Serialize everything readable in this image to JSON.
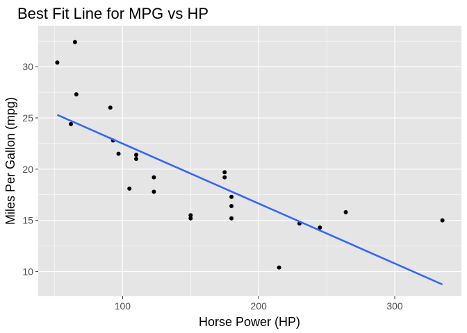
{
  "chart_data": {
    "type": "scatter",
    "title": "Best Fit Line for MPG vs HP",
    "xlabel": "Horse Power (HP)",
    "ylabel": "Miles Per Gallon (mpg)",
    "xlim": [
      38,
      349
    ],
    "ylim": [
      7.6,
      34.0
    ],
    "x_major_ticks": [
      100,
      200,
      300
    ],
    "x_minor_ticks": [
      50,
      150,
      250
    ],
    "y_major_ticks": [
      10,
      15,
      20,
      25,
      30
    ],
    "y_minor_ticks": [
      12.5,
      17.5,
      22.5,
      27.5,
      32.5
    ],
    "grid": true,
    "points": [
      {
        "x": 52,
        "y": 30.4
      },
      {
        "x": 62,
        "y": 24.4
      },
      {
        "x": 65,
        "y": 32.4
      },
      {
        "x": 66,
        "y": 27.3
      },
      {
        "x": 91,
        "y": 26.0
      },
      {
        "x": 93,
        "y": 22.8
      },
      {
        "x": 97,
        "y": 21.5
      },
      {
        "x": 105,
        "y": 18.1
      },
      {
        "x": 110,
        "y": 21.0
      },
      {
        "x": 110,
        "y": 21.4
      },
      {
        "x": 123,
        "y": 19.2
      },
      {
        "x": 123,
        "y": 17.8
      },
      {
        "x": 150,
        "y": 15.5
      },
      {
        "x": 150,
        "y": 15.2
      },
      {
        "x": 175,
        "y": 19.7
      },
      {
        "x": 175,
        "y": 19.2
      },
      {
        "x": 180,
        "y": 17.3
      },
      {
        "x": 180,
        "y": 16.4
      },
      {
        "x": 180,
        "y": 15.2
      },
      {
        "x": 215,
        "y": 10.4
      },
      {
        "x": 230,
        "y": 14.7
      },
      {
        "x": 245,
        "y": 14.3
      },
      {
        "x": 264,
        "y": 15.8
      },
      {
        "x": 335,
        "y": 15.0
      }
    ],
    "fit_line": {
      "x": [
        52,
        335
      ],
      "y": [
        25.3,
        8.75
      ]
    },
    "colors": {
      "panel_background": "#e5e5e5",
      "grid": "#ffffff",
      "points": "#000000",
      "fit_line": "#3366ff",
      "tick_label": "#4d4d4d",
      "tick_mark": "#333333"
    }
  }
}
